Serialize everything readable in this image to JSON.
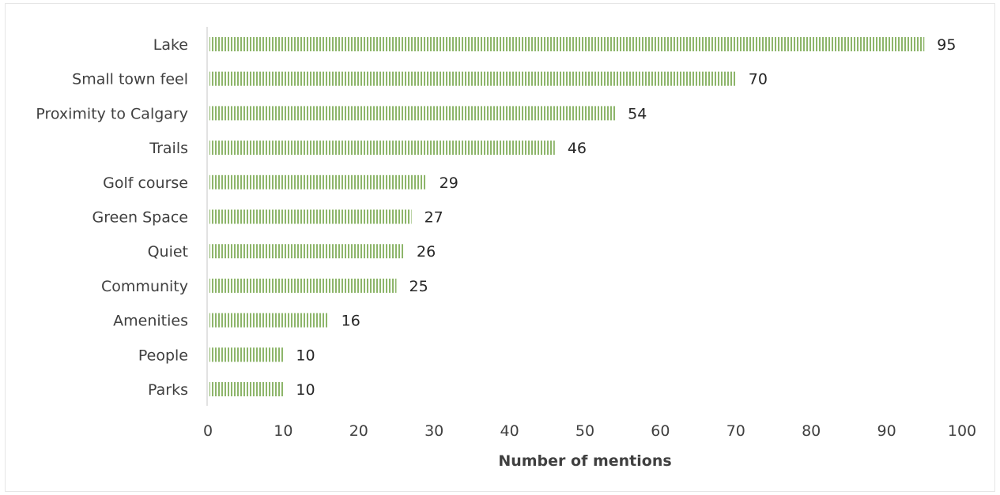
{
  "chart_data": {
    "type": "bar",
    "orientation": "horizontal",
    "categories": [
      "Lake",
      "Small town feel",
      "Proximity to Calgary",
      "Trails",
      "Golf course",
      "Green Space",
      "Quiet",
      "Community",
      "Amenities",
      "People",
      "Parks"
    ],
    "values": [
      95,
      70,
      54,
      46,
      29,
      27,
      26,
      25,
      16,
      10,
      10
    ],
    "data_labels": [
      "95",
      "70",
      "54",
      "46",
      "29",
      "27",
      "26",
      "25",
      "16",
      "10",
      "10"
    ],
    "title": "",
    "xlabel": "Number of mentions",
    "ylabel": "",
    "xlim": [
      0,
      100
    ],
    "x_ticks": [
      "0",
      "10",
      "20",
      "30",
      "40",
      "50",
      "60",
      "70",
      "80",
      "90",
      "100"
    ],
    "grid": false,
    "legend": "none",
    "bar_color": "#8db56a",
    "bar_pattern": "vertical-stripes"
  }
}
